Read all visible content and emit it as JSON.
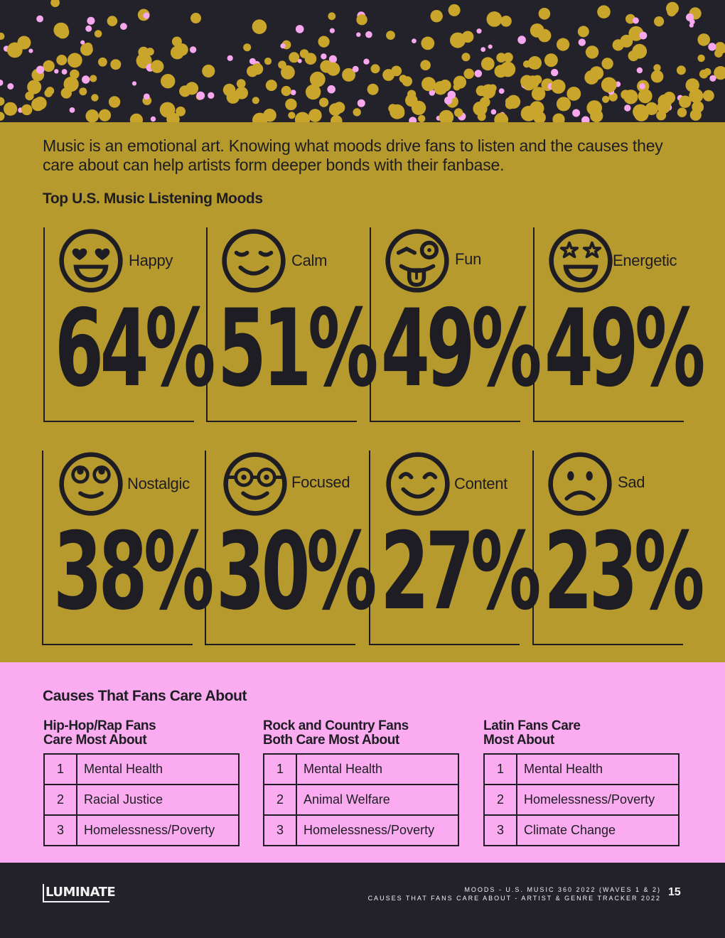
{
  "intro": "Music is an emotional art. Knowing what moods drive fans to listen and the causes they care about can help artists form deeper bonds with their fanbase.",
  "moods_title": "Top U.S. Music Listening Moods",
  "moods": [
    {
      "label": "Happy",
      "value": "64%",
      "icon": "heart-eyes-face-icon"
    },
    {
      "label": "Calm",
      "value": "51%",
      "icon": "relieved-face-icon"
    },
    {
      "label": "Fun",
      "value": "49%",
      "icon": "zany-tongue-face-icon"
    },
    {
      "label": "Energetic",
      "value": "49%",
      "icon": "star-struck-face-icon"
    },
    {
      "label": "Nostalgic",
      "value": "38%",
      "icon": "eye-roll-face-icon"
    },
    {
      "label": "Focused",
      "value": "30%",
      "icon": "nerd-face-icon"
    },
    {
      "label": "Content",
      "value": "27%",
      "icon": "smiling-eyes-face-icon"
    },
    {
      "label": "Sad",
      "value": "23%",
      "icon": "frowning-face-icon"
    }
  ],
  "causes_title": "Causes That Fans Care About",
  "causes": [
    {
      "title_line1": "Hip-Hop/Rap Fans",
      "title_line2": "Care Most About",
      "items": [
        {
          "rank": "1",
          "cause": "Mental Health"
        },
        {
          "rank": "2",
          "cause": "Racial Justice"
        },
        {
          "rank": "3",
          "cause": "Homelessness/Poverty"
        }
      ]
    },
    {
      "title_line1": "Rock and Country Fans",
      "title_line2": "Both Care Most About",
      "items": [
        {
          "rank": "1",
          "cause": "Mental Health"
        },
        {
          "rank": "2",
          "cause": "Animal Welfare"
        },
        {
          "rank": "3",
          "cause": "Homelessness/Poverty"
        }
      ]
    },
    {
      "title_line1": "Latin Fans Care",
      "title_line2": "Most About",
      "items": [
        {
          "rank": "1",
          "cause": "Mental Health"
        },
        {
          "rank": "2",
          "cause": "Homelessness/Poverty"
        },
        {
          "rank": "3",
          "cause": "Climate Change"
        }
      ]
    }
  ],
  "footer": {
    "logo": "LUMINATE",
    "line1": "MOODS - U.S. MUSIC 360 2022 (WAVES 1 & 2)",
    "line2": "CAUSES THAT FANS CARE ABOUT - ARTIST & GENRE TRACKER 2022",
    "page": "15"
  },
  "colors": {
    "gold": "#b79a2d",
    "pink": "#fbabf0",
    "dark": "#23222a",
    "confetti_gold": "#c9a52c",
    "confetti_pink": "#f7a7ee"
  }
}
